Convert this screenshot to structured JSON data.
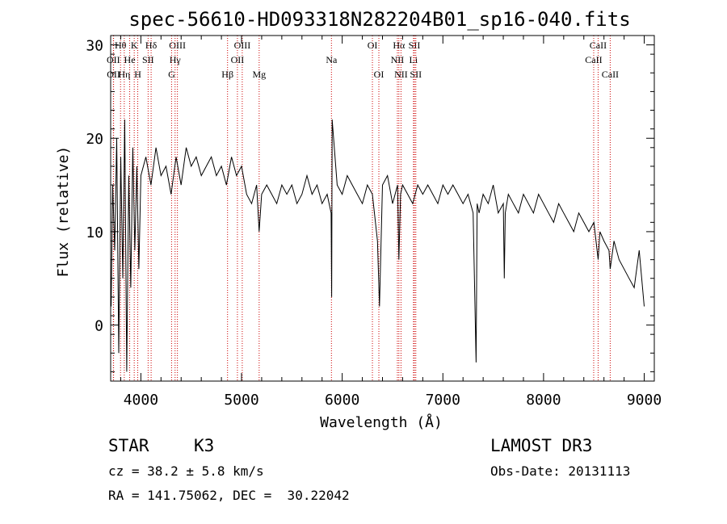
{
  "chart_data": {
    "type": "line",
    "title": "spec-56610-HD093318N282204B01_sp16-040.fits",
    "xlabel": "Wavelength (Å)",
    "ylabel": "Flux (relative)",
    "xlim": [
      3700,
      9100
    ],
    "ylim": [
      -6,
      31
    ],
    "xticks": [
      4000,
      5000,
      6000,
      7000,
      8000,
      9000
    ],
    "yticks": [
      0,
      10,
      20,
      30
    ],
    "xtick_labels": [
      "4000",
      "5000",
      "6000",
      "7000",
      "8000",
      "9000"
    ],
    "ytick_labels": [
      "0",
      "10",
      "20",
      "30"
    ],
    "line_color": "#000000",
    "marker_color": "#cc0000",
    "spectrum": {
      "x": [
        3705,
        3720,
        3740,
        3760,
        3780,
        3800,
        3820,
        3840,
        3860,
        3880,
        3900,
        3920,
        3940,
        3960,
        3980,
        4000,
        4050,
        4100,
        4150,
        4200,
        4250,
        4300,
        4350,
        4400,
        4450,
        4500,
        4550,
        4600,
        4650,
        4700,
        4750,
        4800,
        4850,
        4900,
        4950,
        5000,
        5050,
        5100,
        5150,
        5175,
        5200,
        5250,
        5300,
        5350,
        5400,
        5450,
        5500,
        5550,
        5600,
        5650,
        5700,
        5750,
        5800,
        5850,
        5890,
        5895,
        5900,
        5950,
        6000,
        6050,
        6100,
        6150,
        6200,
        6250,
        6300,
        6350,
        6370,
        6400,
        6450,
        6500,
        6550,
        6563,
        6580,
        6600,
        6650,
        6700,
        6750,
        6800,
        6850,
        6900,
        6950,
        7000,
        7050,
        7100,
        7150,
        7200,
        7250,
        7300,
        7330,
        7340,
        7360,
        7400,
        7450,
        7500,
        7550,
        7600,
        7610,
        7620,
        7650,
        7700,
        7750,
        7800,
        7850,
        7900,
        7950,
        8000,
        8050,
        8100,
        8150,
        8200,
        8250,
        8300,
        8350,
        8400,
        8450,
        8500,
        8542,
        8560,
        8600,
        8650,
        8662,
        8700,
        8750,
        8800,
        8850,
        8900,
        8950,
        9000
      ],
      "y": [
        2,
        15,
        8,
        20,
        -3,
        18,
        5,
        22,
        -5,
        16,
        4,
        19,
        8,
        17,
        6,
        16,
        18,
        15,
        19,
        16,
        17,
        14,
        18,
        15,
        19,
        17,
        18,
        16,
        17,
        18,
        16,
        17,
        15,
        18,
        16,
        17,
        14,
        13,
        15,
        10,
        14,
        15,
        14,
        13,
        15,
        14,
        15,
        13,
        14,
        16,
        14,
        15,
        13,
        14,
        12,
        3,
        22,
        15,
        14,
        16,
        15,
        14,
        13,
        15,
        14,
        9,
        2,
        15,
        16,
        13,
        15,
        7,
        14,
        15,
        14,
        13,
        15,
        14,
        15,
        14,
        13,
        15,
        14,
        15,
        14,
        13,
        14,
        12,
        -4,
        13,
        12,
        14,
        13,
        15,
        12,
        13,
        5,
        12,
        14,
        13,
        12,
        14,
        13,
        12,
        14,
        13,
        12,
        11,
        13,
        12,
        11,
        10,
        12,
        11,
        10,
        11,
        7,
        10,
        9,
        8,
        6,
        9,
        7,
        6,
        5,
        4,
        8,
        2
      ]
    },
    "line_markers": [
      {
        "label": "Hθ",
        "x": 3798,
        "row": 0
      },
      {
        "label": "K",
        "x": 3934,
        "row": 0
      },
      {
        "label": "Hδ",
        "x": 4102,
        "row": 0
      },
      {
        "label": "OIII",
        "x": 4363,
        "row": 0
      },
      {
        "label": "OIII",
        "x": 5007,
        "row": 0
      },
      {
        "label": "OI",
        "x": 6300,
        "row": 0
      },
      {
        "label": "Hα",
        "x": 6563,
        "row": 0
      },
      {
        "label": "SII",
        "x": 6717,
        "row": 0
      },
      {
        "label": "CaII",
        "x": 8542,
        "row": 0
      },
      {
        "label": "OII",
        "x": 3727,
        "row": 1
      },
      {
        "label": "He",
        "x": 3889,
        "row": 1
      },
      {
        "label": "SII",
        "x": 4072,
        "row": 1
      },
      {
        "label": "Hγ",
        "x": 4340,
        "row": 1
      },
      {
        "label": "OII",
        "x": 4959,
        "row": 1
      },
      {
        "label": "Na",
        "x": 5893,
        "row": 1
      },
      {
        "label": "NII",
        "x": 6548,
        "row": 1
      },
      {
        "label": "Li",
        "x": 6708,
        "row": 1
      },
      {
        "label": "CaII",
        "x": 8498,
        "row": 1
      },
      {
        "label": "OII",
        "x": 3729,
        "row": 2
      },
      {
        "label": "Hη",
        "x": 3835,
        "row": 2
      },
      {
        "label": "H",
        "x": 3969,
        "row": 2
      },
      {
        "label": "G",
        "x": 4305,
        "row": 2
      },
      {
        "label": "Hβ",
        "x": 4861,
        "row": 2
      },
      {
        "label": "Mg",
        "x": 5175,
        "row": 2
      },
      {
        "label": "OI",
        "x": 6364,
        "row": 2
      },
      {
        "label": "NII",
        "x": 6584,
        "row": 2
      },
      {
        "label": "SII",
        "x": 6731,
        "row": 2
      },
      {
        "label": "CaII",
        "x": 8662,
        "row": 2
      }
    ]
  },
  "footer": {
    "object_type": "STAR",
    "subclass": "K3",
    "redshift": "cz = 38.2 ± 5.8 km/s",
    "coords": "RA = 141.75062, DEC =  30.22042",
    "survey": "LAMOST DR3",
    "obs_date": "Obs-Date: 20131113"
  }
}
